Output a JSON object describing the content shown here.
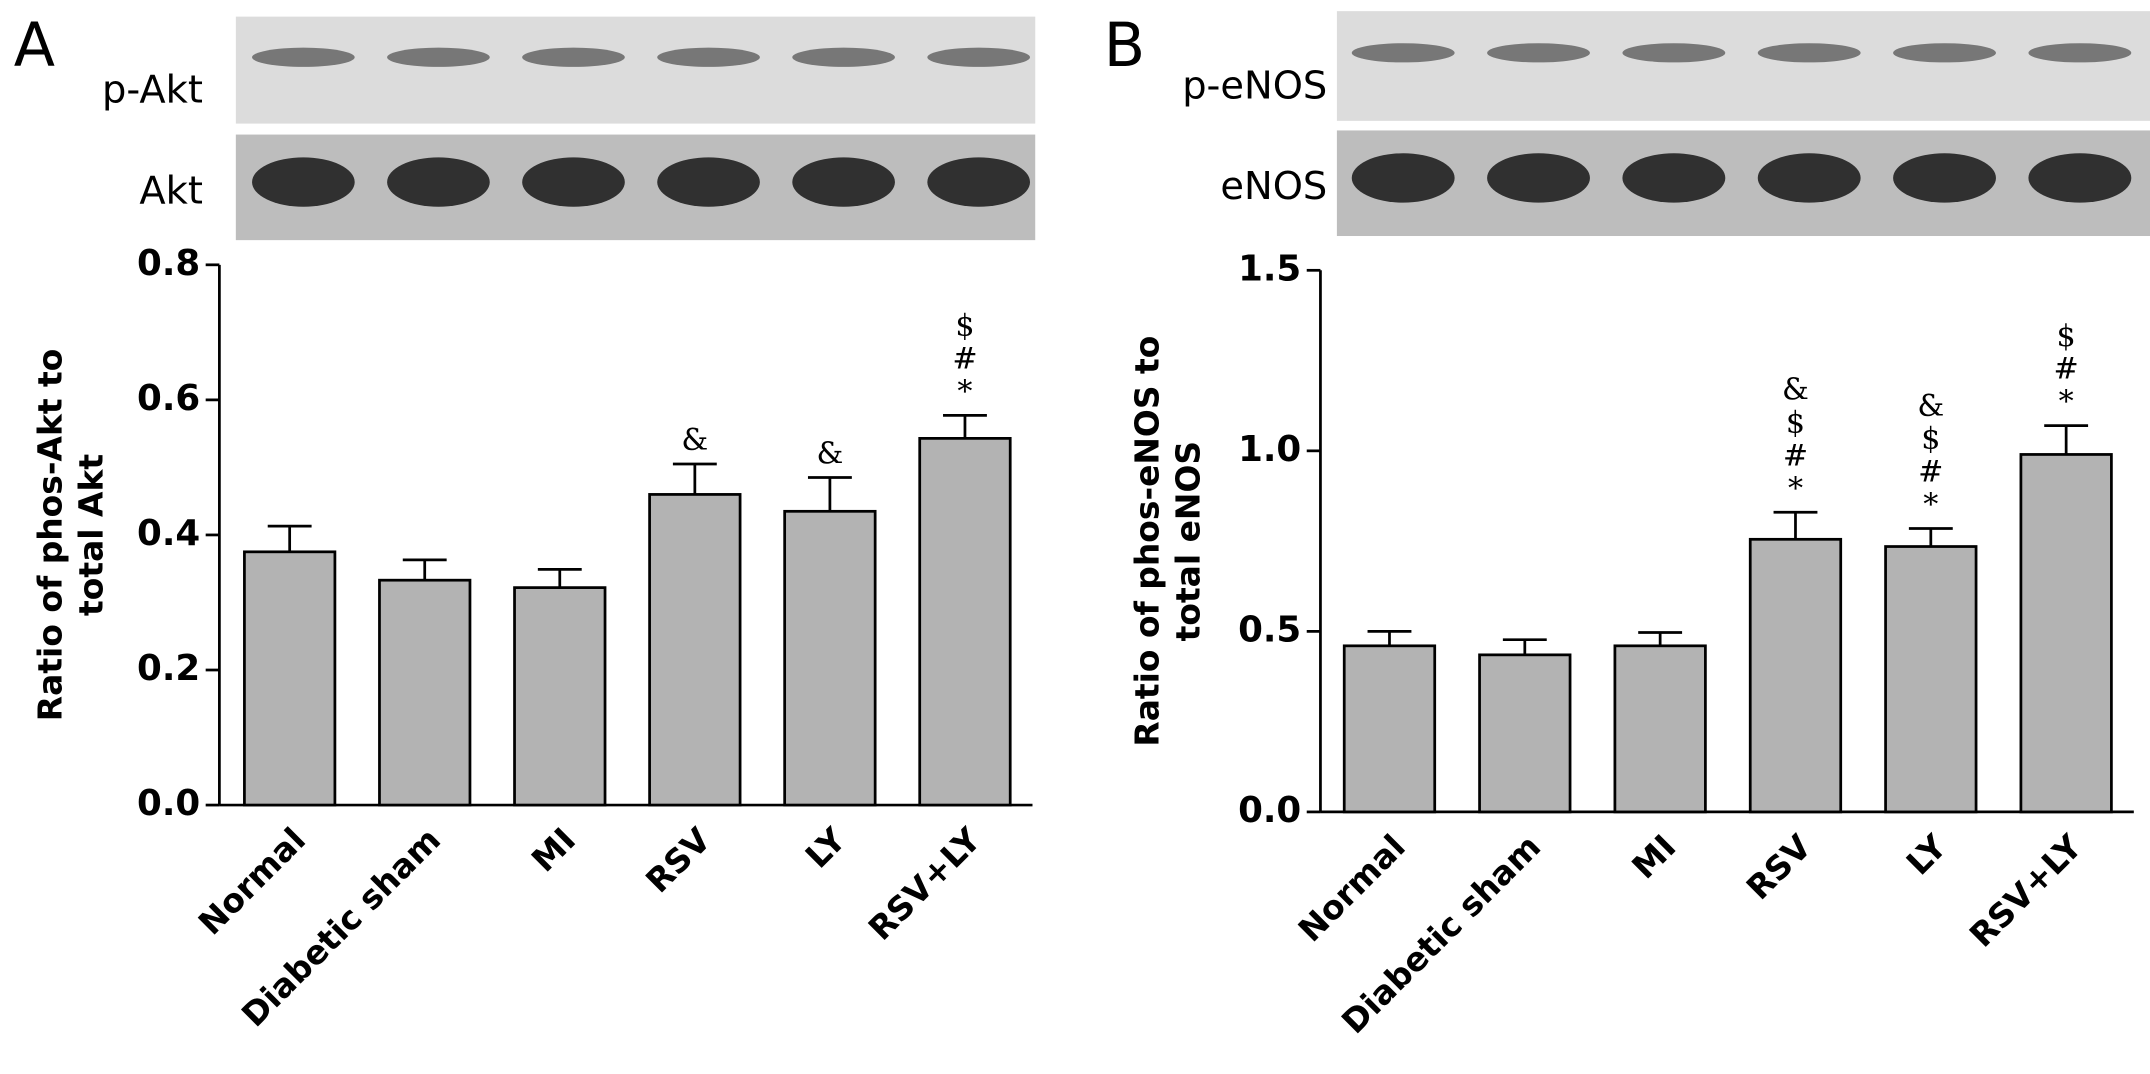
{
  "chart_data": [
    {
      "type": "bar",
      "panel_label": "A",
      "blots": [
        "p-Akt",
        "Akt"
      ],
      "ylabel": [
        "Ratio of phos-Akt to",
        "total Akt"
      ],
      "categories": [
        "Normal",
        "Diabetic sham",
        "MI",
        "RSV",
        "LY",
        "RSV+LY"
      ],
      "values": [
        0.375,
        0.333,
        0.322,
        0.46,
        0.435,
        0.543
      ],
      "errors": [
        0.038,
        0.03,
        0.027,
        0.045,
        0.05,
        0.034
      ],
      "annotations": [
        {
          "category": "RSV",
          "text": [
            "&"
          ]
        },
        {
          "category": "LY",
          "text": [
            "&"
          ]
        },
        {
          "category": "RSV+LY",
          "text": [
            "$",
            "#",
            "*"
          ]
        }
      ],
      "color": "#b3b3b3",
      "ylim": [
        0,
        0.8
      ],
      "yticks": [
        {
          "value": 0,
          "label": "0.0"
        },
        0.2,
        0.4,
        0.6,
        0.8
      ]
    },
    {
      "type": "bar",
      "panel_label": "B",
      "blots": [
        "p-eNOS",
        "eNOS"
      ],
      "ylabel": [
        "Ratio of phos-eNOS to",
        "total eNOS"
      ],
      "categories": [
        "Normal",
        "Diabetic sham",
        "MI",
        "RSV",
        "LY",
        "RSV+LY"
      ],
      "values": [
        0.46,
        0.435,
        0.46,
        0.755,
        0.735,
        0.99
      ],
      "errors": [
        0.04,
        0.042,
        0.037,
        0.075,
        0.05,
        0.08
      ],
      "annotations": [
        {
          "category": "RSV",
          "text": [
            "&",
            "$",
            "#",
            "*"
          ]
        },
        {
          "category": "LY",
          "text": [
            "&",
            "$",
            "#",
            "*"
          ]
        },
        {
          "category": "RSV+LY",
          "text": [
            "$",
            "#",
            "*"
          ]
        }
      ],
      "color": "#b3b3b3",
      "ylim": [
        0,
        1.5
      ],
      "yticks": [
        {
          "value": 0,
          "label": "0.0"
        },
        0.5,
        {
          "value": 1,
          "label": "1.0"
        },
        1.5
      ]
    }
  ]
}
